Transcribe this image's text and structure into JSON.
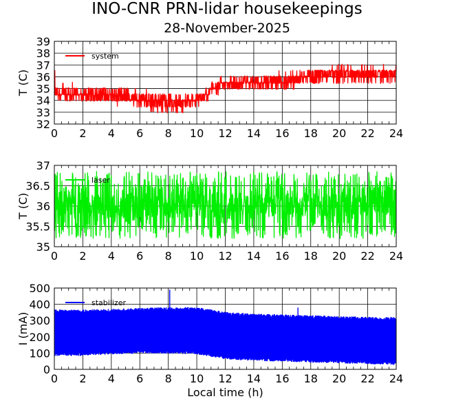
{
  "title": "INO-CNR PRN-lidar housekeepings",
  "subtitle": "28-November-2025",
  "xlabel": "Local time (h)",
  "chart_data": [
    {
      "type": "line",
      "ylabel": "T (C)",
      "xlim": [
        0,
        24
      ],
      "ylim": [
        32,
        39
      ],
      "xticks": [
        0,
        2,
        4,
        6,
        8,
        10,
        12,
        14,
        16,
        18,
        20,
        22,
        24
      ],
      "yticks": [
        32,
        33,
        34,
        35,
        36,
        37,
        38,
        39
      ],
      "grid": true,
      "legend_position": "top-left",
      "series": [
        {
          "name": "system",
          "color": "#ff0000",
          "render": "jitter",
          "x": [
            0,
            0.05,
            0.3,
            2,
            4,
            5.5,
            6.5,
            8.5,
            10,
            10.5,
            11.3,
            12,
            14,
            16.7,
            17,
            18,
            19,
            20,
            22,
            24
          ],
          "lo": [
            36,
            34,
            34,
            33.8,
            33.8,
            33.5,
            33.2,
            33,
            33.4,
            33.8,
            34.6,
            34.7,
            34.8,
            35.0,
            35.2,
            35.3,
            35.4,
            35.5,
            35.6,
            35.2
          ],
          "hi": [
            38.6,
            35.4,
            35.4,
            35.3,
            35.2,
            35.0,
            34.8,
            34.6,
            34.6,
            35.1,
            35.8,
            36.0,
            36.1,
            36.4,
            36.6,
            36.7,
            36.8,
            36.9,
            36.9,
            37.0
          ],
          "level": [
            37,
            34.5,
            34.5,
            34.3,
            34.2,
            34.0,
            33.8,
            33.7,
            34.0,
            34.4,
            35.2,
            35.4,
            35.5,
            35.7,
            36.0,
            36.1,
            36.2,
            36.3,
            36.3,
            36.2
          ]
        }
      ]
    },
    {
      "type": "line",
      "ylabel": "T (C)",
      "xlim": [
        0,
        24
      ],
      "ylim": [
        35,
        37
      ],
      "xticks": [
        0,
        2,
        4,
        6,
        8,
        10,
        12,
        14,
        16,
        18,
        20,
        22,
        24
      ],
      "yticks": [
        35,
        35.5,
        36,
        36.5,
        37
      ],
      "grid": true,
      "legend_position": "top-left",
      "series": [
        {
          "name": "laser",
          "color": "#00ee00",
          "render": "jitter",
          "x": [
            0,
            24
          ],
          "lo": [
            35.2,
            35.2
          ],
          "hi": [
            36.85,
            36.85
          ],
          "level": [
            36.0,
            36.0
          ]
        }
      ]
    },
    {
      "type": "line",
      "ylabel": "I (mA)",
      "xlim": [
        0,
        24
      ],
      "ylim": [
        0,
        500
      ],
      "xticks": [
        0,
        2,
        4,
        6,
        8,
        10,
        12,
        14,
        16,
        18,
        20,
        22,
        24
      ],
      "yticks": [
        0,
        100,
        200,
        300,
        400,
        500
      ],
      "grid": true,
      "legend_position": "top-left",
      "series": [
        {
          "name": "stabilizer",
          "color": "#0000ff",
          "render": "band",
          "x": [
            0,
            2,
            4,
            6,
            8,
            10,
            11,
            12,
            14,
            16,
            18,
            20,
            22,
            24
          ],
          "lo": [
            85,
            85,
            95,
            100,
            100,
            95,
            80,
            65,
            55,
            50,
            45,
            40,
            35,
            30
          ],
          "hi": [
            365,
            365,
            370,
            375,
            380,
            380,
            365,
            350,
            340,
            335,
            330,
            325,
            320,
            320
          ],
          "spikes": [
            [
              8.1,
              490
            ],
            [
              17.1,
              380
            ]
          ]
        }
      ]
    }
  ]
}
